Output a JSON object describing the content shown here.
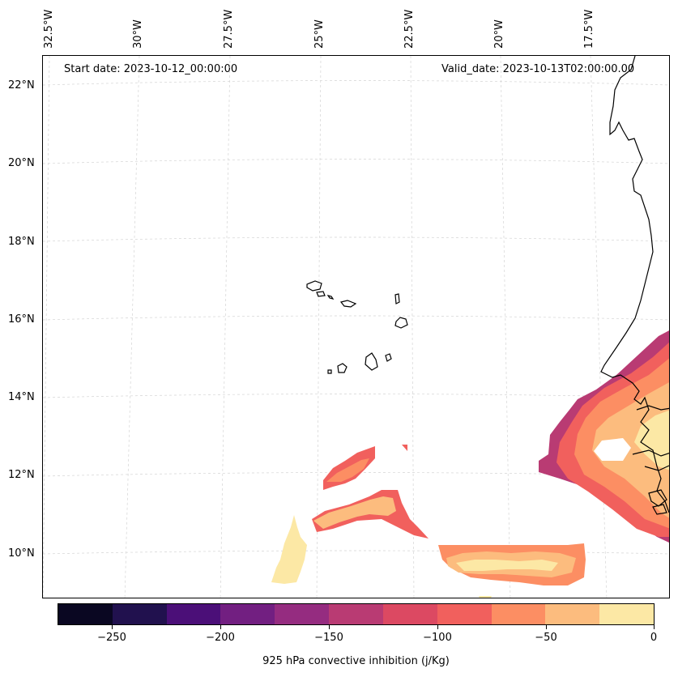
{
  "header": {
    "start_date": "Start date: 2023-10-12_00:00:00",
    "valid_date": "Valid_date: 2023-10-13T02:00:00.00"
  },
  "map": {
    "longitude_labels": [
      "32.5°W",
      "30°W",
      "27.5°W",
      "25°W",
      "22.5°W",
      "20°W",
      "17.5°W"
    ],
    "latitude_labels": [
      "22°N",
      "20°N",
      "18°N",
      "16°N",
      "14°N",
      "12°N",
      "10°N"
    ],
    "gridlines": true,
    "coastline_color": "#000000"
  },
  "colorbar": {
    "title": "925 hPa convective inhibition (j/Kg)",
    "tick_labels": [
      "−250",
      "−200",
      "−150",
      "−100",
      "−50",
      "0"
    ],
    "levels": [
      -275,
      -250,
      -225,
      -200,
      -175,
      -150,
      -125,
      -100,
      -75,
      -50,
      -25,
      0
    ],
    "colors": [
      "#0a0722",
      "#21114e",
      "#4b0f78",
      "#721f81",
      "#952c80",
      "#b93b73",
      "#dc4962",
      "#f1605d",
      "#fc8e63",
      "#fcbc7e",
      "#fce8a5"
    ]
  }
}
